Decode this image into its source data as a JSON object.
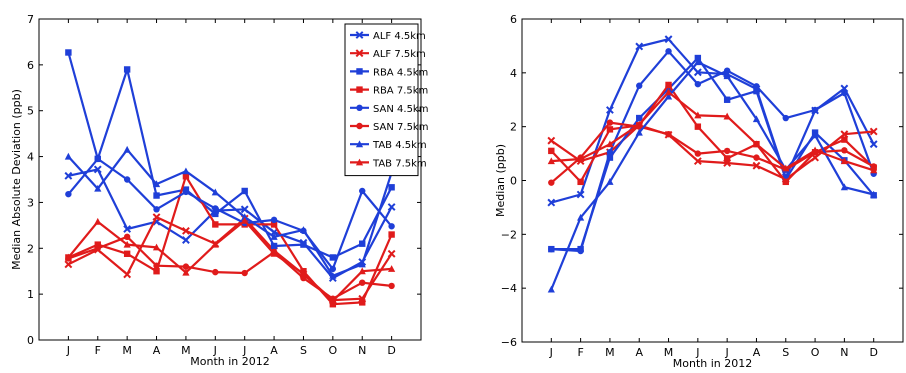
{
  "chart_data": [
    {
      "type": "line",
      "categories": [
        "J",
        "F",
        "M",
        "A",
        "M",
        "J",
        "J",
        "A",
        "S",
        "O",
        "N",
        "D"
      ],
      "xlabel": "Month in 2012",
      "ylabel": "Median Absolute Deviation (ppb)",
      "ylim": [
        0,
        7
      ],
      "yticks": [
        "0",
        "1",
        "2",
        "3",
        "4",
        "5",
        "6",
        "7"
      ],
      "legend": "top-right",
      "series": [
        {
          "name": "ALF 4.5km",
          "color": "#1f3fd8",
          "marker": "x",
          "values": [
            3.58,
            3.72,
            2.42,
            2.58,
            2.18,
            2.82,
            2.85,
            2.35,
            2.12,
            1.35,
            1.7,
            2.9
          ]
        },
        {
          "name": "ALF 7.5km",
          "color": "#e01b1b",
          "marker": "x",
          "values": [
            1.65,
            1.97,
            1.43,
            2.68,
            2.38,
            2.1,
            2.65,
            1.95,
            1.43,
            0.87,
            0.9,
            1.88
          ]
        },
        {
          "name": "RBA 4.5km",
          "color": "#1f3fd8",
          "marker": "s",
          "values": [
            6.27,
            3.95,
            5.9,
            3.15,
            3.28,
            2.75,
            3.25,
            2.05,
            2.08,
            1.8,
            2.1,
            3.33
          ]
        },
        {
          "name": "RBA 7.5km",
          "color": "#e01b1b",
          "marker": "s",
          "values": [
            1.8,
            2.08,
            1.88,
            1.5,
            3.57,
            2.52,
            2.52,
            2.52,
            1.5,
            0.78,
            0.82,
            2.3
          ]
        },
        {
          "name": "SAN 4.5km",
          "color": "#1f3fd8",
          "marker": "o",
          "values": [
            3.18,
            3.95,
            3.5,
            2.85,
            3.23,
            2.87,
            2.55,
            2.62,
            2.38,
            1.55,
            3.25,
            2.48
          ]
        },
        {
          "name": "SAN 7.5km",
          "color": "#e01b1b",
          "marker": "o",
          "values": [
            1.78,
            2.0,
            2.25,
            1.62,
            1.6,
            1.48,
            1.46,
            1.92,
            1.35,
            0.9,
            1.25,
            1.18
          ]
        },
        {
          "name": "TAB 4.5km",
          "color": "#1f3fd8",
          "marker": "^",
          "values": [
            4.0,
            3.3,
            4.15,
            3.4,
            3.68,
            3.22,
            2.68,
            2.25,
            2.4,
            1.4,
            1.65,
            3.65
          ]
        },
        {
          "name": "TAB 7.5km",
          "color": "#e01b1b",
          "marker": "^",
          "values": [
            1.8,
            2.58,
            2.08,
            2.02,
            1.47,
            2.08,
            2.6,
            1.88,
            1.45,
            0.85,
            1.5,
            1.55
          ]
        }
      ]
    },
    {
      "type": "line",
      "categories": [
        "J",
        "F",
        "M",
        "A",
        "M",
        "J",
        "J",
        "A",
        "S",
        "O",
        "N",
        "D"
      ],
      "xlabel": "Month in 2012",
      "ylabel": "Median (ppb)",
      "ylim": [
        -6,
        6
      ],
      "yticks": [
        "−6",
        "−4",
        "−2",
        "0",
        "2",
        "4",
        "6"
      ],
      "series": [
        {
          "name": "ALF 4.5km",
          "color": "#1f3fd8",
          "marker": "x",
          "values": [
            -0.82,
            -0.52,
            2.62,
            4.98,
            5.25,
            4.02,
            3.95,
            3.4,
            0.12,
            2.6,
            3.42,
            1.35
          ]
        },
        {
          "name": "ALF 7.5km",
          "color": "#e01b1b",
          "marker": "x",
          "values": [
            1.48,
            0.72,
            1.05,
            2.05,
            1.7,
            0.72,
            0.65,
            0.55,
            0.05,
            0.85,
            1.72,
            1.82
          ]
        },
        {
          "name": "RBA 4.5km",
          "color": "#1f3fd8",
          "marker": "s",
          "values": [
            -2.55,
            -2.55,
            0.85,
            2.32,
            3.4,
            4.55,
            3.0,
            3.32,
            0.05,
            1.78,
            0.75,
            -0.55
          ]
        },
        {
          "name": "RBA 7.5km",
          "color": "#e01b1b",
          "marker": "s",
          "values": [
            1.1,
            -0.05,
            1.9,
            2.05,
            3.55,
            2.0,
            0.82,
            1.35,
            -0.05,
            1.05,
            1.52,
            0.48
          ]
        },
        {
          "name": "SAN 4.5km",
          "color": "#1f3fd8",
          "marker": "o",
          "values": [
            -2.55,
            -2.62,
            1.05,
            3.52,
            4.8,
            3.58,
            4.08,
            3.5,
            2.32,
            2.62,
            3.25,
            0.25
          ]
        },
        {
          "name": "SAN 7.5km",
          "color": "#e01b1b",
          "marker": "o",
          "values": [
            -0.08,
            0.85,
            2.15,
            2.0,
            1.72,
            1.0,
            1.1,
            0.85,
            0.4,
            1.05,
            1.12,
            0.52
          ]
        },
        {
          "name": "TAB 4.5km",
          "color": "#1f3fd8",
          "marker": "^",
          "values": [
            -4.05,
            -1.38,
            -0.05,
            1.78,
            3.12,
            4.4,
            3.88,
            2.28,
            0.4,
            1.68,
            -0.25,
            -0.52
          ]
        },
        {
          "name": "TAB 7.5km",
          "color": "#e01b1b",
          "marker": "^",
          "values": [
            0.72,
            0.8,
            1.35,
            2.08,
            3.28,
            2.42,
            2.38,
            1.35,
            0.45,
            1.12,
            0.72,
            0.38
          ]
        }
      ]
    }
  ]
}
